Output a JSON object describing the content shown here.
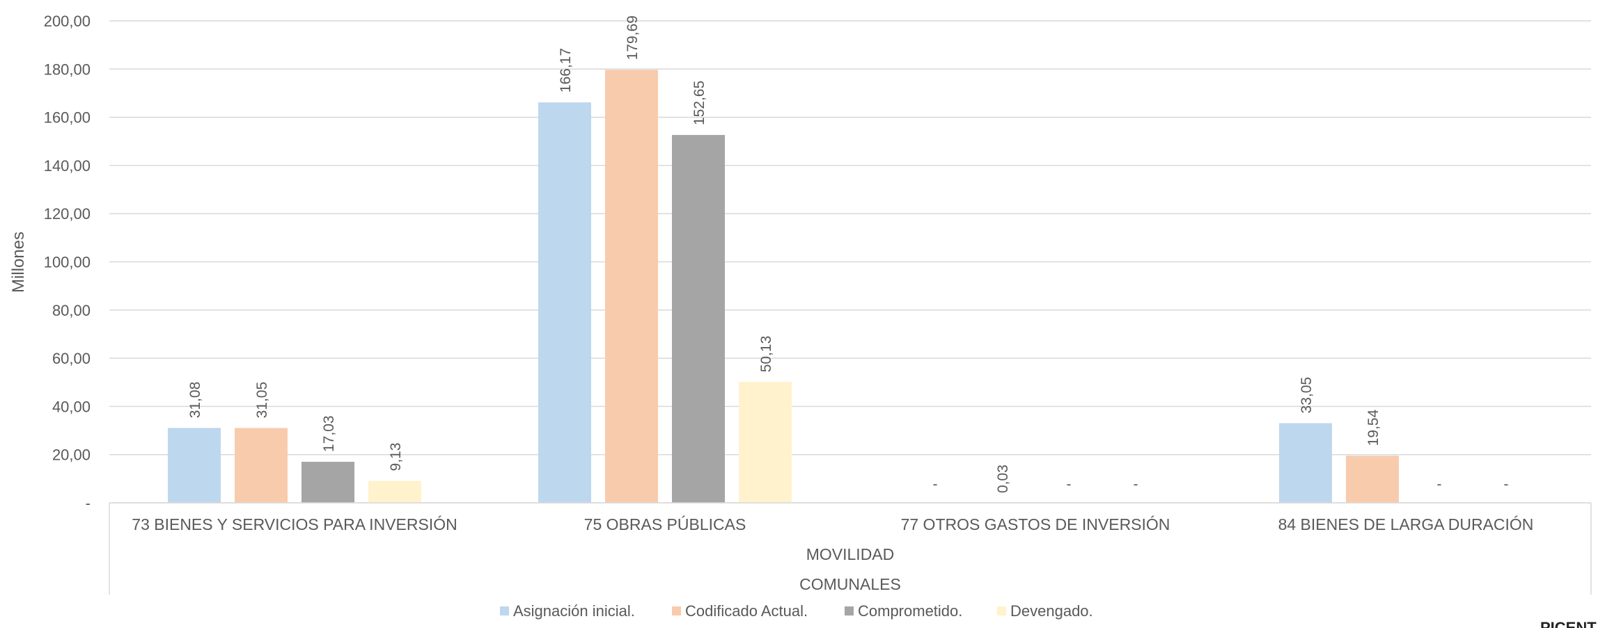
{
  "chart_data": {
    "type": "bar",
    "ylabel": "Millones",
    "ylim": [
      0,
      200
    ],
    "y_ticks": [
      {
        "value": 0,
        "label": "-"
      },
      {
        "value": 20,
        "label": "20,00"
      },
      {
        "value": 40,
        "label": "40,00"
      },
      {
        "value": 60,
        "label": "60,00"
      },
      {
        "value": 80,
        "label": "80,00"
      },
      {
        "value": 100,
        "label": "100,00"
      },
      {
        "value": 120,
        "label": "120,00"
      },
      {
        "value": 140,
        "label": "140,00"
      },
      {
        "value": 160,
        "label": "160,00"
      },
      {
        "value": 180,
        "label": "180,00"
      },
      {
        "value": 200,
        "label": "200,00"
      }
    ],
    "grid": true,
    "categories": [
      "73 BIENES Y SERVICIOS PARA INVERSIÓN",
      "75 OBRAS PÚBLICAS",
      "77 OTROS GASTOS DE INVERSIÓN",
      "84 BIENES DE LARGA DURACIÓN"
    ],
    "category_group_labels": [
      "MOVILIDAD",
      "COMUNALES"
    ],
    "series": [
      {
        "name": "Asignación inicial.",
        "color": "#bdd7ee",
        "values": [
          31.08,
          166.17,
          0,
          33.05
        ],
        "labels": [
          "31,08",
          "166,17",
          "-",
          "33,05"
        ]
      },
      {
        "name": "Codificado Actual.",
        "color": "#f8cbad",
        "values": [
          31.05,
          179.69,
          0.03,
          19.54
        ],
        "labels": [
          "31,05",
          "179,69",
          "0,03",
          "19,54"
        ]
      },
      {
        "name": "Comprometido.",
        "color": "#a5a5a5",
        "values": [
          17.03,
          152.65,
          0,
          0
        ],
        "labels": [
          "17,03",
          "152,65",
          "-",
          "-"
        ]
      },
      {
        "name": "Devengado.",
        "color": "#fff2cc",
        "values": [
          9.13,
          50.13,
          0,
          0
        ],
        "labels": [
          "9,13",
          "50,13",
          "-",
          "-"
        ]
      }
    ],
    "legend_position": "bottom"
  },
  "corner_logo_text": "PICENT"
}
